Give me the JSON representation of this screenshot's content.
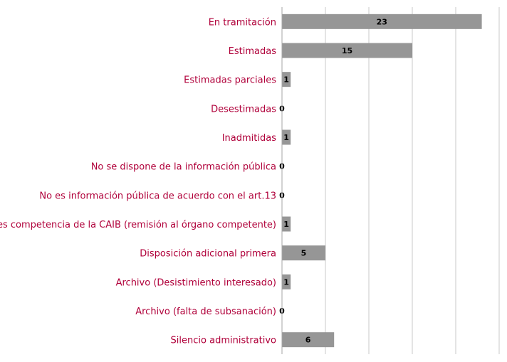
{
  "chart_data": {
    "type": "bar",
    "orientation": "horizontal",
    "categories": [
      "En tramitación",
      "Estimadas",
      "Estimadas parciales",
      "Desestimadas",
      "Inadmitidas",
      "No se dispone de la información pública",
      "No es información pública de acuerdo con el art.13",
      "No es competencia de la CAIB (remisión al órgano competente)",
      "Disposición adicional primera",
      "Archivo (Desistimiento interesado)",
      "Archivo (falta de subsanación)",
      "Silencio administrativo"
    ],
    "values": [
      23,
      15,
      1,
      0,
      1,
      0,
      0,
      1,
      5,
      1,
      0,
      6
    ],
    "xlim": [
      0,
      25
    ],
    "xticks": [
      0,
      5,
      10,
      15,
      20,
      25
    ],
    "grid": true,
    "legend": "none",
    "colors": {
      "bar": "#969696",
      "category_label": "#b0003a",
      "value_label": "#000000",
      "grid": "#c8c8c8",
      "axis": "#a6a6a6"
    }
  }
}
